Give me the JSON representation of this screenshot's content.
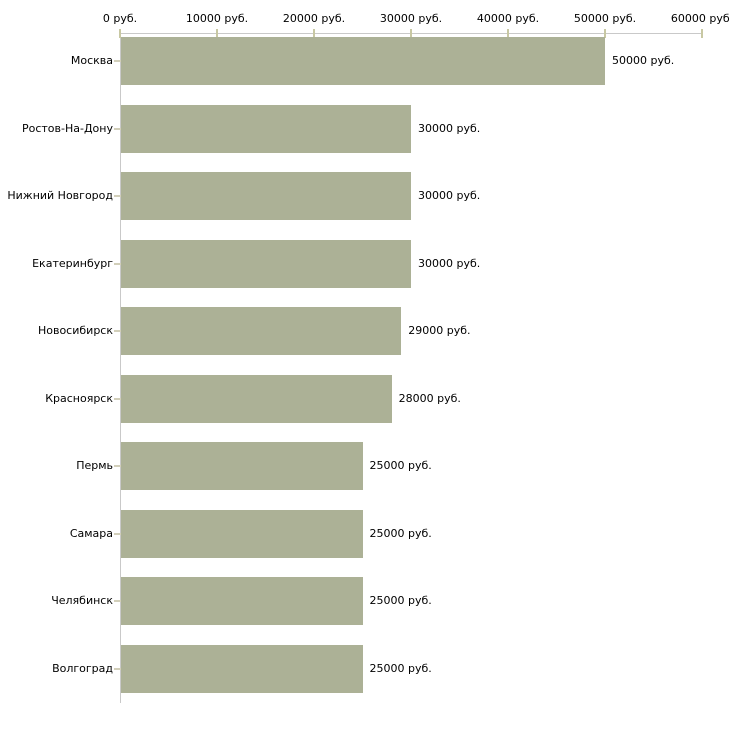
{
  "chart_data": {
    "type": "bar",
    "orientation": "horizontal",
    "title": "",
    "xlabel": "",
    "ylabel": "",
    "unit": "руб.",
    "grid": false,
    "legend": false,
    "categories": [
      "Москва",
      "Ростов-На-Дону",
      "Нижний Новгород",
      "Екатеринбург",
      "Новосибирск",
      "Красноярск",
      "Пермь",
      "Самара",
      "Челябинск",
      "Волгоград"
    ],
    "values": [
      50000,
      30000,
      30000,
      30000,
      29000,
      28000,
      25000,
      25000,
      25000,
      25000
    ],
    "value_labels": [
      "50000 руб.",
      "30000 руб.",
      "30000 руб.",
      "30000 руб.",
      "29000 руб.",
      "28000 руб.",
      "25000 руб.",
      "25000 руб.",
      "25000 руб.",
      "25000 руб."
    ],
    "x_axis": {
      "position": "top",
      "min": 0,
      "max": 60000,
      "ticks": [
        0,
        10000,
        20000,
        30000,
        40000,
        50000,
        60000
      ],
      "tick_labels": [
        "0 руб.",
        "10000 руб.",
        "20000 руб.",
        "30000 руб.",
        "40000 руб.",
        "50000 руб.",
        "60000 руб."
      ]
    },
    "colors": {
      "bar": "#acb196",
      "axis_line": "#c9c9c9",
      "axis_tick": "#c8c8a3",
      "category_tick": "#d2cfba",
      "text": "#000000",
      "background": "#ffffff"
    }
  }
}
